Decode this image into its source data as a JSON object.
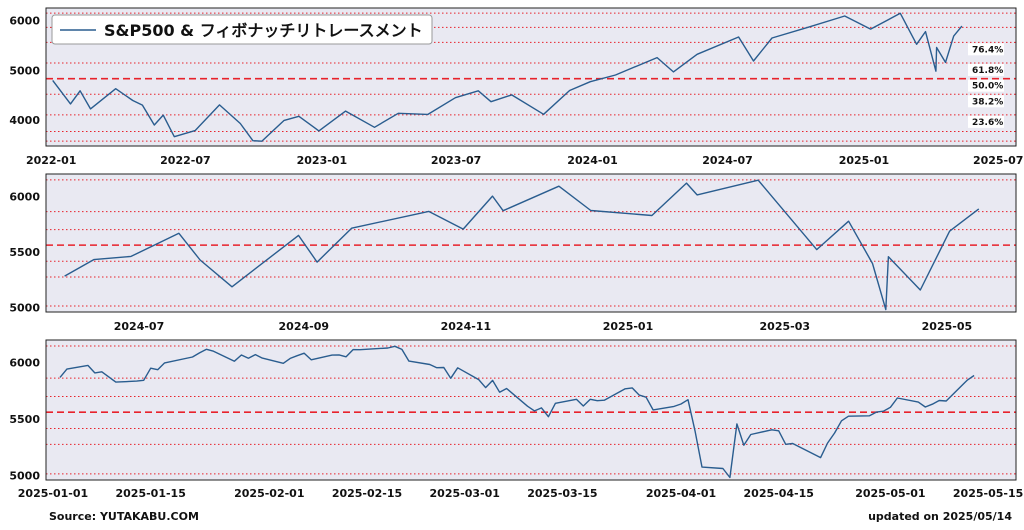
{
  "legend": {
    "label": "S&P500 & フィボナッチリトレースメント",
    "line_color": "#2a5d8f"
  },
  "footer": {
    "source": "Source: YUTAKABU.COM",
    "updated": "updated on 2025/05/14"
  },
  "colors": {
    "series": "#2a5d8f",
    "fib_lines": "#e8222b",
    "plot_bg": "#e9e9f2"
  },
  "chart_data": [
    {
      "type": "line",
      "ylim": [
        3480,
        6250
      ],
      "y_ticks": [
        4000,
        5000,
        6000
      ],
      "x_range": [
        "2021-12-25",
        "2025-07-25"
      ],
      "x_ticks": [
        "2022-01",
        "2022-07",
        "2023-01",
        "2023-07",
        "2024-01",
        "2024-07",
        "2025-01",
        "2025-07"
      ],
      "fib_levels": [
        {
          "label": "76.4%",
          "value": 5561
        },
        {
          "label": "61.8%",
          "value": 5146
        },
        {
          "label": "50.0%",
          "value": 4832
        },
        {
          "label": "38.2%",
          "value": 4518
        },
        {
          "label": "23.6%",
          "value": 4105
        }
      ],
      "extra_levels": [
        6147,
        5862,
        3770,
        3577
      ],
      "series": [
        {
          "points": [
            [
              "2022-01-03",
              4796
            ],
            [
              "2022-01-27",
              4326
            ],
            [
              "2022-02-09",
              4587
            ],
            [
              "2022-02-23",
              4225
            ],
            [
              "2022-03-29",
              4631
            ],
            [
              "2022-04-21",
              4393
            ],
            [
              "2022-05-04",
              4300
            ],
            [
              "2022-05-20",
              3901
            ],
            [
              "2022-06-01",
              4101
            ],
            [
              "2022-06-16",
              3666
            ],
            [
              "2022-07-14",
              3790
            ],
            [
              "2022-08-16",
              4305
            ],
            [
              "2022-09-13",
              3932
            ],
            [
              "2022-09-30",
              3586
            ],
            [
              "2022-10-12",
              3577
            ],
            [
              "2022-11-11",
              3993
            ],
            [
              "2022-12-01",
              4076
            ],
            [
              "2022-12-28",
              3783
            ],
            [
              "2023-02-02",
              4180
            ],
            [
              "2023-03-13",
              3855
            ],
            [
              "2023-04-14",
              4137
            ],
            [
              "2023-05-24",
              4115
            ],
            [
              "2023-06-30",
              4450
            ],
            [
              "2023-07-31",
              4589
            ],
            [
              "2023-08-17",
              4370
            ],
            [
              "2023-09-14",
              4505
            ],
            [
              "2023-10-27",
              4117
            ],
            [
              "2023-12-01",
              4594
            ],
            [
              "2023-12-29",
              4770
            ],
            [
              "2024-02-01",
              4906
            ],
            [
              "2024-03-28",
              5254
            ],
            [
              "2024-04-19",
              4967
            ],
            [
              "2024-05-21",
              5321
            ],
            [
              "2024-07-16",
              5667
            ],
            [
              "2024-08-05",
              5186
            ],
            [
              "2024-08-30",
              5648
            ],
            [
              "2024-10-18",
              5864
            ],
            [
              "2024-12-06",
              6090
            ],
            [
              "2025-01-10",
              5827
            ],
            [
              "2025-02-19",
              6144
            ],
            [
              "2025-03-13",
              5521
            ],
            [
              "2025-03-25",
              5776
            ],
            [
              "2025-04-08",
              4982
            ],
            [
              "2025-04-09",
              5457
            ],
            [
              "2025-04-21",
              5158
            ],
            [
              "2025-05-02",
              5686
            ],
            [
              "2025-05-13",
              5886
            ]
          ]
        }
      ]
    },
    {
      "type": "line",
      "ylim": [
        4960,
        6200
      ],
      "y_ticks": [
        5000,
        5500,
        6000
      ],
      "x_range": [
        "2024-05-27",
        "2025-05-27"
      ],
      "x_ticks": [
        "2024-07",
        "2024-09",
        "2024-11",
        "2025-01",
        "2025-03",
        "2025-05"
      ],
      "fib_levels": [
        {
          "label": "",
          "value": 5561
        }
      ],
      "extra_levels": [
        6147,
        5862,
        5700,
        5416,
        5275,
        5014
      ],
      "series": [
        {
          "points": [
            [
              "2024-06-03",
              5283
            ],
            [
              "2024-06-14",
              5431
            ],
            [
              "2024-06-28",
              5460
            ],
            [
              "2024-07-16",
              5667
            ],
            [
              "2024-07-24",
              5427
            ],
            [
              "2024-08-05",
              5186
            ],
            [
              "2024-08-30",
              5648
            ],
            [
              "2024-09-06",
              5408
            ],
            [
              "2024-09-19",
              5713
            ],
            [
              "2024-10-18",
              5864
            ],
            [
              "2024-10-31",
              5705
            ],
            [
              "2024-11-11",
              6001
            ],
            [
              "2024-11-15",
              5870
            ],
            [
              "2024-12-06",
              6090
            ],
            [
              "2024-12-18",
              5872
            ],
            [
              "2025-01-10",
              5827
            ],
            [
              "2025-01-23",
              6118
            ],
            [
              "2025-01-27",
              6012
            ],
            [
              "2025-02-19",
              6144
            ],
            [
              "2025-03-13",
              5521
            ],
            [
              "2025-03-25",
              5776
            ],
            [
              "2025-04-03",
              5396
            ],
            [
              "2025-04-08",
              4982
            ],
            [
              "2025-04-09",
              5457
            ],
            [
              "2025-04-21",
              5158
            ],
            [
              "2025-05-02",
              5686
            ],
            [
              "2025-05-13",
              5886
            ]
          ]
        }
      ]
    },
    {
      "type": "line",
      "ylim": [
        4960,
        6200
      ],
      "y_ticks": [
        5000,
        5500,
        6000
      ],
      "x_range": [
        "2024-12-31",
        "2025-05-19"
      ],
      "x_ticks": [
        "2025-01-01",
        "2025-01-15",
        "2025-02-01",
        "2025-02-15",
        "2025-03-01",
        "2025-03-15",
        "2025-04-01",
        "2025-04-15",
        "2025-05-01",
        "2025-05-15"
      ],
      "fib_levels": [
        {
          "label": "",
          "value": 5561
        }
      ],
      "extra_levels": [
        6147,
        5862,
        5700,
        5416,
        5275,
        5014
      ],
      "series": [
        {
          "points": [
            [
              "2025-01-02",
              5869
            ],
            [
              "2025-01-03",
              5942
            ],
            [
              "2025-01-06",
              5975
            ],
            [
              "2025-01-07",
              5909
            ],
            [
              "2025-01-08",
              5918
            ],
            [
              "2025-01-10",
              5827
            ],
            [
              "2025-01-13",
              5836
            ],
            [
              "2025-01-14",
              5843
            ],
            [
              "2025-01-15",
              5950
            ],
            [
              "2025-01-16",
              5937
            ],
            [
              "2025-01-17",
              5997
            ],
            [
              "2025-01-21",
              6049
            ],
            [
              "2025-01-22",
              6086
            ],
            [
              "2025-01-23",
              6118
            ],
            [
              "2025-01-24",
              6101
            ],
            [
              "2025-01-27",
              6012
            ],
            [
              "2025-01-28",
              6067
            ],
            [
              "2025-01-29",
              6039
            ],
            [
              "2025-01-30",
              6071
            ],
            [
              "2025-01-31",
              6040
            ],
            [
              "2025-02-03",
              5994
            ],
            [
              "2025-02-04",
              6037
            ],
            [
              "2025-02-05",
              6061
            ],
            [
              "2025-02-06",
              6083
            ],
            [
              "2025-02-07",
              6025
            ],
            [
              "2025-02-10",
              6066
            ],
            [
              "2025-02-11",
              6068
            ],
            [
              "2025-02-12",
              6051
            ],
            [
              "2025-02-13",
              6115
            ],
            [
              "2025-02-14",
              6114
            ],
            [
              "2025-02-18",
              6129
            ],
            [
              "2025-02-19",
              6144
            ],
            [
              "2025-02-20",
              6117
            ],
            [
              "2025-02-21",
              6013
            ],
            [
              "2025-02-24",
              5983
            ],
            [
              "2025-02-25",
              5955
            ],
            [
              "2025-02-26",
              5956
            ],
            [
              "2025-02-27",
              5861
            ],
            [
              "2025-02-28",
              5954
            ],
            [
              "2025-03-03",
              5849
            ],
            [
              "2025-03-04",
              5778
            ],
            [
              "2025-03-05",
              5842
            ],
            [
              "2025-03-06",
              5738
            ],
            [
              "2025-03-07",
              5770
            ],
            [
              "2025-03-10",
              5614
            ],
            [
              "2025-03-11",
              5572
            ],
            [
              "2025-03-12",
              5599
            ],
            [
              "2025-03-13",
              5521
            ],
            [
              "2025-03-14",
              5639
            ],
            [
              "2025-03-17",
              5675
            ],
            [
              "2025-03-18",
              5615
            ],
            [
              "2025-03-19",
              5675
            ],
            [
              "2025-03-20",
              5662
            ],
            [
              "2025-03-21",
              5667
            ],
            [
              "2025-03-24",
              5768
            ],
            [
              "2025-03-25",
              5776
            ],
            [
              "2025-03-26",
              5712
            ],
            [
              "2025-03-27",
              5693
            ],
            [
              "2025-03-28",
              5581
            ],
            [
              "2025-03-31",
              5612
            ],
            [
              "2025-04-01",
              5633
            ],
            [
              "2025-04-02",
              5671
            ],
            [
              "2025-04-03",
              5396
            ],
            [
              "2025-04-04",
              5074
            ],
            [
              "2025-04-07",
              5062
            ],
            [
              "2025-04-08",
              4982
            ],
            [
              "2025-04-09",
              5457
            ],
            [
              "2025-04-10",
              5268
            ],
            [
              "2025-04-11",
              5363
            ],
            [
              "2025-04-14",
              5405
            ],
            [
              "2025-04-15",
              5396
            ],
            [
              "2025-04-16",
              5276
            ],
            [
              "2025-04-17",
              5283
            ],
            [
              "2025-04-21",
              5158
            ],
            [
              "2025-04-22",
              5288
            ],
            [
              "2025-04-23",
              5376
            ],
            [
              "2025-04-24",
              5484
            ],
            [
              "2025-04-25",
              5525
            ],
            [
              "2025-04-28",
              5529
            ],
            [
              "2025-04-29",
              5561
            ],
            [
              "2025-04-30",
              5569
            ],
            [
              "2025-05-01",
              5604
            ],
            [
              "2025-05-02",
              5686
            ],
            [
              "2025-05-05",
              5650
            ],
            [
              "2025-05-06",
              5607
            ],
            [
              "2025-05-07",
              5631
            ],
            [
              "2025-05-08",
              5664
            ],
            [
              "2025-05-09",
              5660
            ],
            [
              "2025-05-12",
              5844
            ],
            [
              "2025-05-13",
              5886
            ]
          ]
        }
      ]
    }
  ]
}
